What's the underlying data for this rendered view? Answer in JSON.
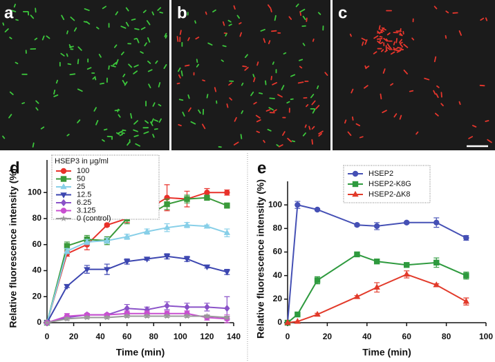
{
  "image_panels": [
    {
      "label": "a"
    },
    {
      "label": "b"
    },
    {
      "label": "c"
    }
  ],
  "chart_data": [
    {
      "type": "line",
      "panel_label": "d",
      "xlabel": "Time (min)",
      "ylabel": "Relative fluorescence intensity (%)",
      "legend_title": "HSEP3 in μg/ml",
      "legend": "upper left",
      "xlim": [
        0,
        140
      ],
      "xticks": [
        0,
        20,
        40,
        60,
        80,
        100,
        120,
        140
      ],
      "ylim": [
        0,
        125
      ],
      "yticks": [
        0,
        20,
        40,
        60,
        80,
        100
      ],
      "x": [
        0,
        15,
        30,
        45,
        60,
        75,
        90,
        105,
        120,
        135
      ],
      "series": [
        {
          "name": "100",
          "color": "#e8312a",
          "marker": "circle",
          "values": [
            0,
            53,
            60,
            75,
            80,
            87,
            96,
            95,
            100,
            100
          ],
          "errors": [
            0,
            2,
            4,
            1,
            3,
            3,
            10,
            6,
            3,
            2
          ]
        },
        {
          "name": "50",
          "color": "#3a9a3a",
          "marker": "square",
          "values": [
            0,
            59,
            64,
            63,
            80,
            82,
            91,
            95,
            96,
            90
          ],
          "errors": [
            0,
            3,
            3,
            3,
            4,
            2,
            4,
            3,
            2,
            2
          ]
        },
        {
          "name": "25",
          "color": "#87cfe8",
          "marker": "triangle-up",
          "values": [
            0,
            55,
            62,
            63,
            66,
            70,
            73,
            75,
            74,
            69
          ],
          "errors": [
            0,
            2,
            2,
            2,
            2,
            2,
            3,
            2,
            1,
            3
          ]
        },
        {
          "name": "12.5",
          "color": "#3c46b0",
          "marker": "triangle-down",
          "values": [
            0,
            28,
            41,
            41,
            47,
            49,
            51,
            49,
            43,
            39
          ],
          "errors": [
            0,
            1,
            3,
            4,
            2,
            1,
            2,
            2,
            1,
            2
          ]
        },
        {
          "name": "6.25",
          "color": "#8a52c8",
          "marker": "diamond",
          "values": [
            0,
            4,
            6,
            6,
            11,
            10,
            13,
            12,
            12,
            11
          ],
          "errors": [
            0,
            1,
            1,
            1,
            3,
            2,
            3,
            3,
            3,
            9
          ]
        },
        {
          "name": "3.125",
          "color": "#c84fd0",
          "marker": "circle",
          "values": [
            0,
            5,
            6,
            6,
            7,
            7,
            7,
            7,
            4,
            3
          ],
          "errors": [
            0,
            2,
            1,
            1,
            2,
            2,
            2,
            2,
            2,
            3
          ]
        },
        {
          "name": "0 (control)",
          "color": "#999999",
          "marker": "star",
          "values": [
            0,
            3,
            4,
            4,
            5,
            5,
            5,
            5,
            5,
            4
          ],
          "errors": [
            0,
            1,
            1,
            1,
            1,
            1,
            1,
            1,
            1,
            1
          ]
        }
      ]
    },
    {
      "type": "line",
      "panel_label": "e",
      "xlabel": "Time (min)",
      "ylabel": "Relative fluorescence intensity (%)",
      "legend": "upper center",
      "xlim": [
        0,
        100
      ],
      "xticks": [
        0,
        20,
        40,
        60,
        80,
        100
      ],
      "ylim": [
        0,
        120
      ],
      "yticks": [
        0,
        20,
        40,
        60,
        80,
        100
      ],
      "x": [
        0,
        5,
        15,
        35,
        45,
        60,
        75,
        90
      ],
      "series": [
        {
          "name": "HSEP2",
          "color": "#4550b5",
          "marker": "circle",
          "values": [
            0,
            100,
            96,
            83,
            82,
            85,
            85,
            72
          ],
          "errors": [
            0,
            3,
            1,
            1,
            3,
            1,
            4,
            2
          ]
        },
        {
          "name": "HSEP2-K8G",
          "color": "#2e9a3e",
          "marker": "square",
          "values": [
            0,
            7,
            36,
            58,
            52,
            49,
            51,
            40
          ],
          "errors": [
            0,
            1,
            3,
            1,
            2,
            1,
            4,
            3
          ]
        },
        {
          "name": "HSEP2-ΔK8",
          "color": "#e23a2a",
          "marker": "triangle-up",
          "values": [
            0,
            1,
            7,
            22,
            30,
            41,
            32,
            18
          ],
          "errors": [
            0,
            0,
            1,
            1,
            4,
            3,
            1,
            3
          ]
        }
      ]
    }
  ]
}
